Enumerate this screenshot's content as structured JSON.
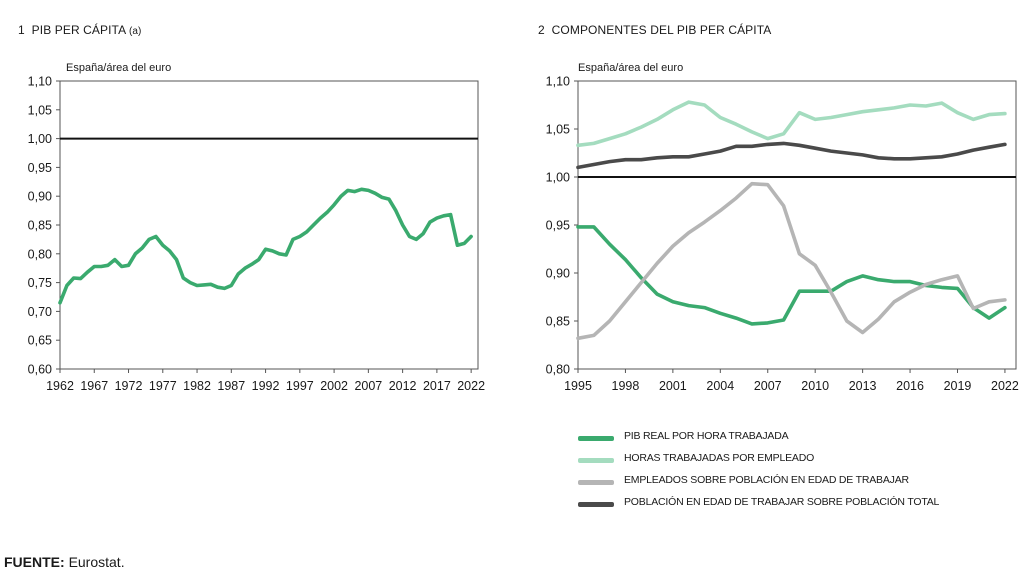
{
  "panel1": {
    "number": "1",
    "title": "PIB PER CÁPITA",
    "title_suffix": "(a)"
  },
  "panel2": {
    "number": "2",
    "title": "COMPONENTES DEL PIB PER CÁPITA"
  },
  "source": {
    "label": "FUENTE:",
    "text": "Eurostat."
  },
  "chart_data": [
    {
      "type": "line",
      "title": "1 PIB PER CÁPITA (a)",
      "ylabel": "España/área del euro",
      "ylim": [
        0.6,
        1.1
      ],
      "yticks": [
        "0,60",
        "0,65",
        "0,70",
        "0,75",
        "0,80",
        "0,85",
        "0,90",
        "0,95",
        "1,00",
        "1,05",
        "1,10"
      ],
      "xlim": [
        1962,
        2023
      ],
      "xticks": [
        "1962",
        "1967",
        "1972",
        "1977",
        "1982",
        "1987",
        "1992",
        "1997",
        "2002",
        "2007",
        "2012",
        "2017",
        "2022"
      ],
      "reference_line": 1.0,
      "grid": false,
      "series": [
        {
          "color": "#3aaa6e",
          "x": [
            1962,
            1963,
            1964,
            1965,
            1966,
            1967,
            1968,
            1969,
            1970,
            1971,
            1972,
            1973,
            1974,
            1975,
            1976,
            1977,
            1978,
            1979,
            1980,
            1981,
            1982,
            1983,
            1984,
            1985,
            1986,
            1987,
            1988,
            1989,
            1990,
            1991,
            1992,
            1993,
            1994,
            1995,
            1996,
            1997,
            1998,
            1999,
            2000,
            2001,
            2002,
            2003,
            2004,
            2005,
            2006,
            2007,
            2008,
            2009,
            2010,
            2011,
            2012,
            2013,
            2014,
            2015,
            2016,
            2017,
            2018,
            2019,
            2020,
            2021,
            2022
          ],
          "y": [
            0.715,
            0.745,
            0.758,
            0.757,
            0.768,
            0.778,
            0.778,
            0.78,
            0.79,
            0.778,
            0.78,
            0.8,
            0.81,
            0.825,
            0.83,
            0.815,
            0.805,
            0.79,
            0.758,
            0.75,
            0.745,
            0.746,
            0.747,
            0.742,
            0.74,
            0.745,
            0.765,
            0.775,
            0.782,
            0.79,
            0.808,
            0.805,
            0.8,
            0.798,
            0.825,
            0.83,
            0.838,
            0.85,
            0.862,
            0.872,
            0.885,
            0.9,
            0.91,
            0.908,
            0.912,
            0.91,
            0.905,
            0.898,
            0.895,
            0.875,
            0.85,
            0.83,
            0.825,
            0.835,
            0.855,
            0.862,
            0.866,
            0.868,
            0.815,
            0.818,
            0.83
          ]
        }
      ]
    },
    {
      "type": "line",
      "title": "2 COMPONENTES DEL PIB PER CÁPITA",
      "ylabel": "España/área del euro",
      "ylim": [
        0.8,
        1.1
      ],
      "yticks": [
        "0,80",
        "0,85",
        "0,90",
        "0,95",
        "1,00",
        "1,05",
        "1,10"
      ],
      "xlim": [
        1995,
        2022.7
      ],
      "xticks": [
        "1995",
        "1998",
        "2001",
        "2004",
        "2007",
        "2010",
        "2013",
        "2016",
        "2019",
        "2022"
      ],
      "reference_line": 1.0,
      "grid": false,
      "legend_position": "bottom",
      "series": [
        {
          "name": "PIB REAL POR HORA TRABAJADA",
          "color": "#3aaa6e",
          "x": [
            1995,
            1996,
            1997,
            1998,
            1999,
            2000,
            2001,
            2002,
            2003,
            2004,
            2005,
            2006,
            2007,
            2008,
            2009,
            2010,
            2011,
            2012,
            2013,
            2014,
            2015,
            2016,
            2017,
            2018,
            2019,
            2020,
            2021,
            2022
          ],
          "y": [
            0.948,
            0.948,
            0.93,
            0.914,
            0.895,
            0.878,
            0.87,
            0.866,
            0.864,
            0.858,
            0.853,
            0.847,
            0.848,
            0.851,
            0.881,
            0.881,
            0.881,
            0.891,
            0.897,
            0.893,
            0.891,
            0.891,
            0.887,
            0.885,
            0.884,
            0.864,
            0.853,
            0.864
          ]
        },
        {
          "name": "HORAS TRABAJADAS POR EMPLEADO",
          "color": "#a4dcbf",
          "x": [
            1995,
            1996,
            1997,
            1998,
            1999,
            2000,
            2001,
            2002,
            2003,
            2004,
            2005,
            2006,
            2007,
            2008,
            2009,
            2010,
            2011,
            2012,
            2013,
            2014,
            2015,
            2016,
            2017,
            2018,
            2019,
            2020,
            2021,
            2022
          ],
          "y": [
            1.033,
            1.035,
            1.04,
            1.045,
            1.052,
            1.06,
            1.07,
            1.078,
            1.075,
            1.062,
            1.055,
            1.047,
            1.04,
            1.045,
            1.067,
            1.06,
            1.062,
            1.065,
            1.068,
            1.07,
            1.072,
            1.075,
            1.074,
            1.077,
            1.067,
            1.06,
            1.065,
            1.066
          ]
        },
        {
          "name": "EMPLEADOS SOBRE POBLACIÓN EN EDAD DE TRABAJAR",
          "color": "#b5b5b5",
          "x": [
            1995,
            1996,
            1997,
            1998,
            1999,
            2000,
            2001,
            2002,
            2003,
            2004,
            2005,
            2006,
            2007,
            2008,
            2009,
            2010,
            2011,
            2012,
            2013,
            2014,
            2015,
            2016,
            2017,
            2018,
            2019,
            2020,
            2021,
            2022
          ],
          "y": [
            0.832,
            0.835,
            0.85,
            0.87,
            0.89,
            0.91,
            0.928,
            0.942,
            0.953,
            0.965,
            0.978,
            0.993,
            0.992,
            0.97,
            0.92,
            0.908,
            0.88,
            0.85,
            0.838,
            0.852,
            0.87,
            0.88,
            0.888,
            0.893,
            0.897,
            0.863,
            0.87,
            0.872
          ]
        },
        {
          "name": "POBLACIÓN EN EDAD DE TRABAJAR SOBRE POBLACIÓN TOTAL",
          "color": "#4a4a4a",
          "x": [
            1995,
            1996,
            1997,
            1998,
            1999,
            2000,
            2001,
            2002,
            2003,
            2004,
            2005,
            2006,
            2007,
            2008,
            2009,
            2010,
            2011,
            2012,
            2013,
            2014,
            2015,
            2016,
            2017,
            2018,
            2019,
            2020,
            2021,
            2022
          ],
          "y": [
            1.01,
            1.013,
            1.016,
            1.018,
            1.018,
            1.02,
            1.021,
            1.021,
            1.024,
            1.027,
            1.032,
            1.032,
            1.034,
            1.035,
            1.033,
            1.03,
            1.027,
            1.025,
            1.023,
            1.02,
            1.019,
            1.019,
            1.02,
            1.021,
            1.024,
            1.028,
            1.031,
            1.034
          ]
        }
      ]
    }
  ]
}
